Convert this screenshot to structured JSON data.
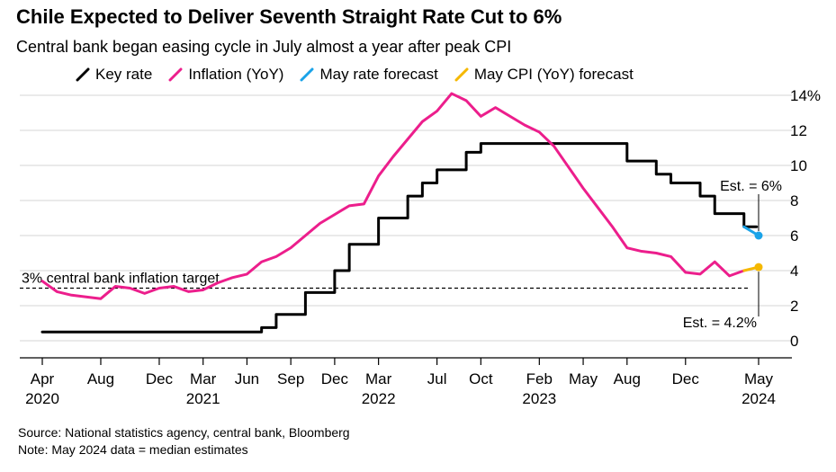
{
  "title": "Chile Expected to Deliver Seventh Straight Rate Cut to 6%",
  "subtitle": "Central bank began easing cycle in July almost a year after peak CPI",
  "legend": [
    {
      "label": "Key rate",
      "color": "#000000"
    },
    {
      "label": "Inflation (YoY)",
      "color": "#ec1e8c"
    },
    {
      "label": "May rate forecast",
      "color": "#1aa3e8"
    },
    {
      "label": "May CPI (YoY) forecast",
      "color": "#f5b800"
    }
  ],
  "footer": {
    "source": "Source: National statistics agency, central bank, Bloomberg",
    "note": "Note: May 2024 data = median estimates"
  },
  "chart_data": {
    "type": "line",
    "x_type": "month",
    "xlim": [
      "2020-03",
      "2024-06"
    ],
    "ylim": [
      -1,
      14
    ],
    "y_ticks": [
      0,
      2,
      4,
      6,
      8,
      10,
      12,
      14
    ],
    "y_tick_labels": [
      "0",
      "2",
      "4",
      "6",
      "8",
      "10",
      "12",
      "14%"
    ],
    "x_ticks": [
      {
        "x": "2020-04",
        "label": "Apr",
        "sub": "2020"
      },
      {
        "x": "2020-08",
        "label": "Aug",
        "sub": ""
      },
      {
        "x": "2020-12",
        "label": "Dec",
        "sub": ""
      },
      {
        "x": "2021-03",
        "label": "Mar",
        "sub": "2021"
      },
      {
        "x": "2021-06",
        "label": "Jun",
        "sub": ""
      },
      {
        "x": "2021-09",
        "label": "Sep",
        "sub": ""
      },
      {
        "x": "2021-12",
        "label": "Dec",
        "sub": ""
      },
      {
        "x": "2022-03",
        "label": "Mar",
        "sub": "2022"
      },
      {
        "x": "2022-07",
        "label": "Jul",
        "sub": ""
      },
      {
        "x": "2022-10",
        "label": "Oct",
        "sub": ""
      },
      {
        "x": "2023-02",
        "label": "Feb",
        "sub": "2023"
      },
      {
        "x": "2023-05",
        "label": "May",
        "sub": ""
      },
      {
        "x": "2023-08",
        "label": "Aug",
        "sub": ""
      },
      {
        "x": "2023-12",
        "label": "Dec",
        "sub": ""
      },
      {
        "x": "2024-05",
        "label": "May",
        "sub": "2024"
      }
    ],
    "grid": true,
    "target_line": {
      "y": 3,
      "label": "3% central bank inflation target"
    },
    "annotations": [
      {
        "text": "Est. = 6%",
        "x": "2024-05",
        "y": 6,
        "position": "above"
      },
      {
        "text": "Est. = 4.2%",
        "x": "2024-05",
        "y": 4.2,
        "position": "below"
      }
    ],
    "series": [
      {
        "name": "Key rate",
        "color": "#000000",
        "step": true,
        "points": [
          [
            "2020-04",
            0.5
          ],
          [
            "2021-06",
            0.5
          ],
          [
            "2021-07",
            0.75
          ],
          [
            "2021-08",
            1.5
          ],
          [
            "2021-10",
            2.75
          ],
          [
            "2021-11",
            2.75
          ],
          [
            "2021-12",
            4.0
          ],
          [
            "2022-01",
            5.5
          ],
          [
            "2022-02",
            5.5
          ],
          [
            "2022-03",
            7.0
          ],
          [
            "2022-04",
            7.0
          ],
          [
            "2022-05",
            8.25
          ],
          [
            "2022-06",
            9.0
          ],
          [
            "2022-07",
            9.75
          ],
          [
            "2022-08",
            9.75
          ],
          [
            "2022-09",
            10.75
          ],
          [
            "2022-10",
            11.25
          ],
          [
            "2023-07",
            11.25
          ],
          [
            "2023-08",
            10.25
          ],
          [
            "2023-09",
            10.25
          ],
          [
            "2023-10",
            9.5
          ],
          [
            "2023-11",
            9.0
          ],
          [
            "2023-12",
            9.0
          ],
          [
            "2024-01",
            8.25
          ],
          [
            "2024-02",
            7.25
          ],
          [
            "2024-03",
            7.25
          ],
          [
            "2024-04",
            6.5
          ]
        ]
      },
      {
        "name": "Inflation (YoY)",
        "color": "#ec1e8c",
        "step": false,
        "points": [
          [
            "2020-04",
            3.4
          ],
          [
            "2020-05",
            2.8
          ],
          [
            "2020-06",
            2.6
          ],
          [
            "2020-07",
            2.5
          ],
          [
            "2020-08",
            2.4
          ],
          [
            "2020-09",
            3.1
          ],
          [
            "2020-10",
            3.0
          ],
          [
            "2020-11",
            2.7
          ],
          [
            "2020-12",
            3.0
          ],
          [
            "2021-01",
            3.1
          ],
          [
            "2021-02",
            2.8
          ],
          [
            "2021-03",
            2.9
          ],
          [
            "2021-04",
            3.3
          ],
          [
            "2021-05",
            3.6
          ],
          [
            "2021-06",
            3.8
          ],
          [
            "2021-07",
            4.5
          ],
          [
            "2021-08",
            4.8
          ],
          [
            "2021-09",
            5.3
          ],
          [
            "2021-10",
            6.0
          ],
          [
            "2021-11",
            6.7
          ],
          [
            "2021-12",
            7.2
          ],
          [
            "2022-01",
            7.7
          ],
          [
            "2022-02",
            7.8
          ],
          [
            "2022-03",
            9.4
          ],
          [
            "2022-04",
            10.5
          ],
          [
            "2022-05",
            11.5
          ],
          [
            "2022-06",
            12.5
          ],
          [
            "2022-07",
            13.1
          ],
          [
            "2022-08",
            14.1
          ],
          [
            "2022-09",
            13.7
          ],
          [
            "2022-10",
            12.8
          ],
          [
            "2022-11",
            13.3
          ],
          [
            "2022-12",
            12.8
          ],
          [
            "2023-01",
            12.3
          ],
          [
            "2023-02",
            11.9
          ],
          [
            "2023-03",
            11.1
          ],
          [
            "2023-04",
            9.9
          ],
          [
            "2023-05",
            8.7
          ],
          [
            "2023-06",
            7.6
          ],
          [
            "2023-07",
            6.5
          ],
          [
            "2023-08",
            5.3
          ],
          [
            "2023-09",
            5.1
          ],
          [
            "2023-10",
            5.0
          ],
          [
            "2023-11",
            4.8
          ],
          [
            "2023-12",
            3.9
          ],
          [
            "2024-01",
            3.8
          ],
          [
            "2024-02",
            4.5
          ],
          [
            "2024-03",
            3.7
          ],
          [
            "2024-04",
            4.0
          ]
        ]
      },
      {
        "name": "May rate forecast",
        "color": "#1aa3e8",
        "step": false,
        "points": [
          [
            "2024-04",
            6.5
          ],
          [
            "2024-05",
            6.0
          ]
        ],
        "end_marker": true
      },
      {
        "name": "May CPI (YoY) forecast",
        "color": "#f5b800",
        "step": false,
        "points": [
          [
            "2024-04",
            4.0
          ],
          [
            "2024-05",
            4.2
          ]
        ],
        "end_marker": true
      }
    ]
  }
}
